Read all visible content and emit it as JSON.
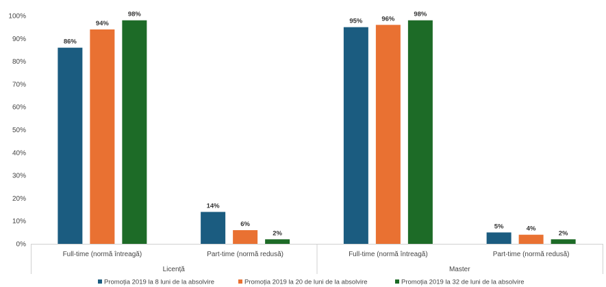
{
  "chart_data": {
    "type": "bar",
    "title": "",
    "ylabel": "",
    "xlabel": "",
    "ylim": [
      0,
      100
    ],
    "y_ticks": [
      "0%",
      "10%",
      "20%",
      "30%",
      "40%",
      "50%",
      "60%",
      "70%",
      "80%",
      "90%",
      "100%"
    ],
    "grid": false,
    "legend_position": "bottom",
    "groups": [
      {
        "label": "Licență",
        "categories": [
          "Full-time (normă întreagă)",
          "Part-time (normă redusă)"
        ]
      },
      {
        "label": "Master",
        "categories": [
          "Full-time (normă întreagă)",
          "Part-time (normă redusă)"
        ]
      }
    ],
    "series": [
      {
        "name": "Promoția 2019 la 8 luni de la absolvire",
        "color": "#1b5c80",
        "values": [
          86,
          14,
          95,
          5
        ],
        "labels": [
          "86%",
          "14%",
          "95%",
          "5%"
        ]
      },
      {
        "name": "Promoția 2019 la 20 de luni de la absolvire",
        "color": "#e97132",
        "values": [
          94,
          6,
          96,
          4
        ],
        "labels": [
          "94%",
          "6%",
          "96%",
          "4%"
        ]
      },
      {
        "name": "Promoția 2019 la 32 de luni de la absolvire",
        "color": "#1d6b27",
        "values": [
          98,
          2,
          98,
          2
        ],
        "labels": [
          "98%",
          "2%",
          "98%",
          "2%"
        ]
      }
    ]
  }
}
